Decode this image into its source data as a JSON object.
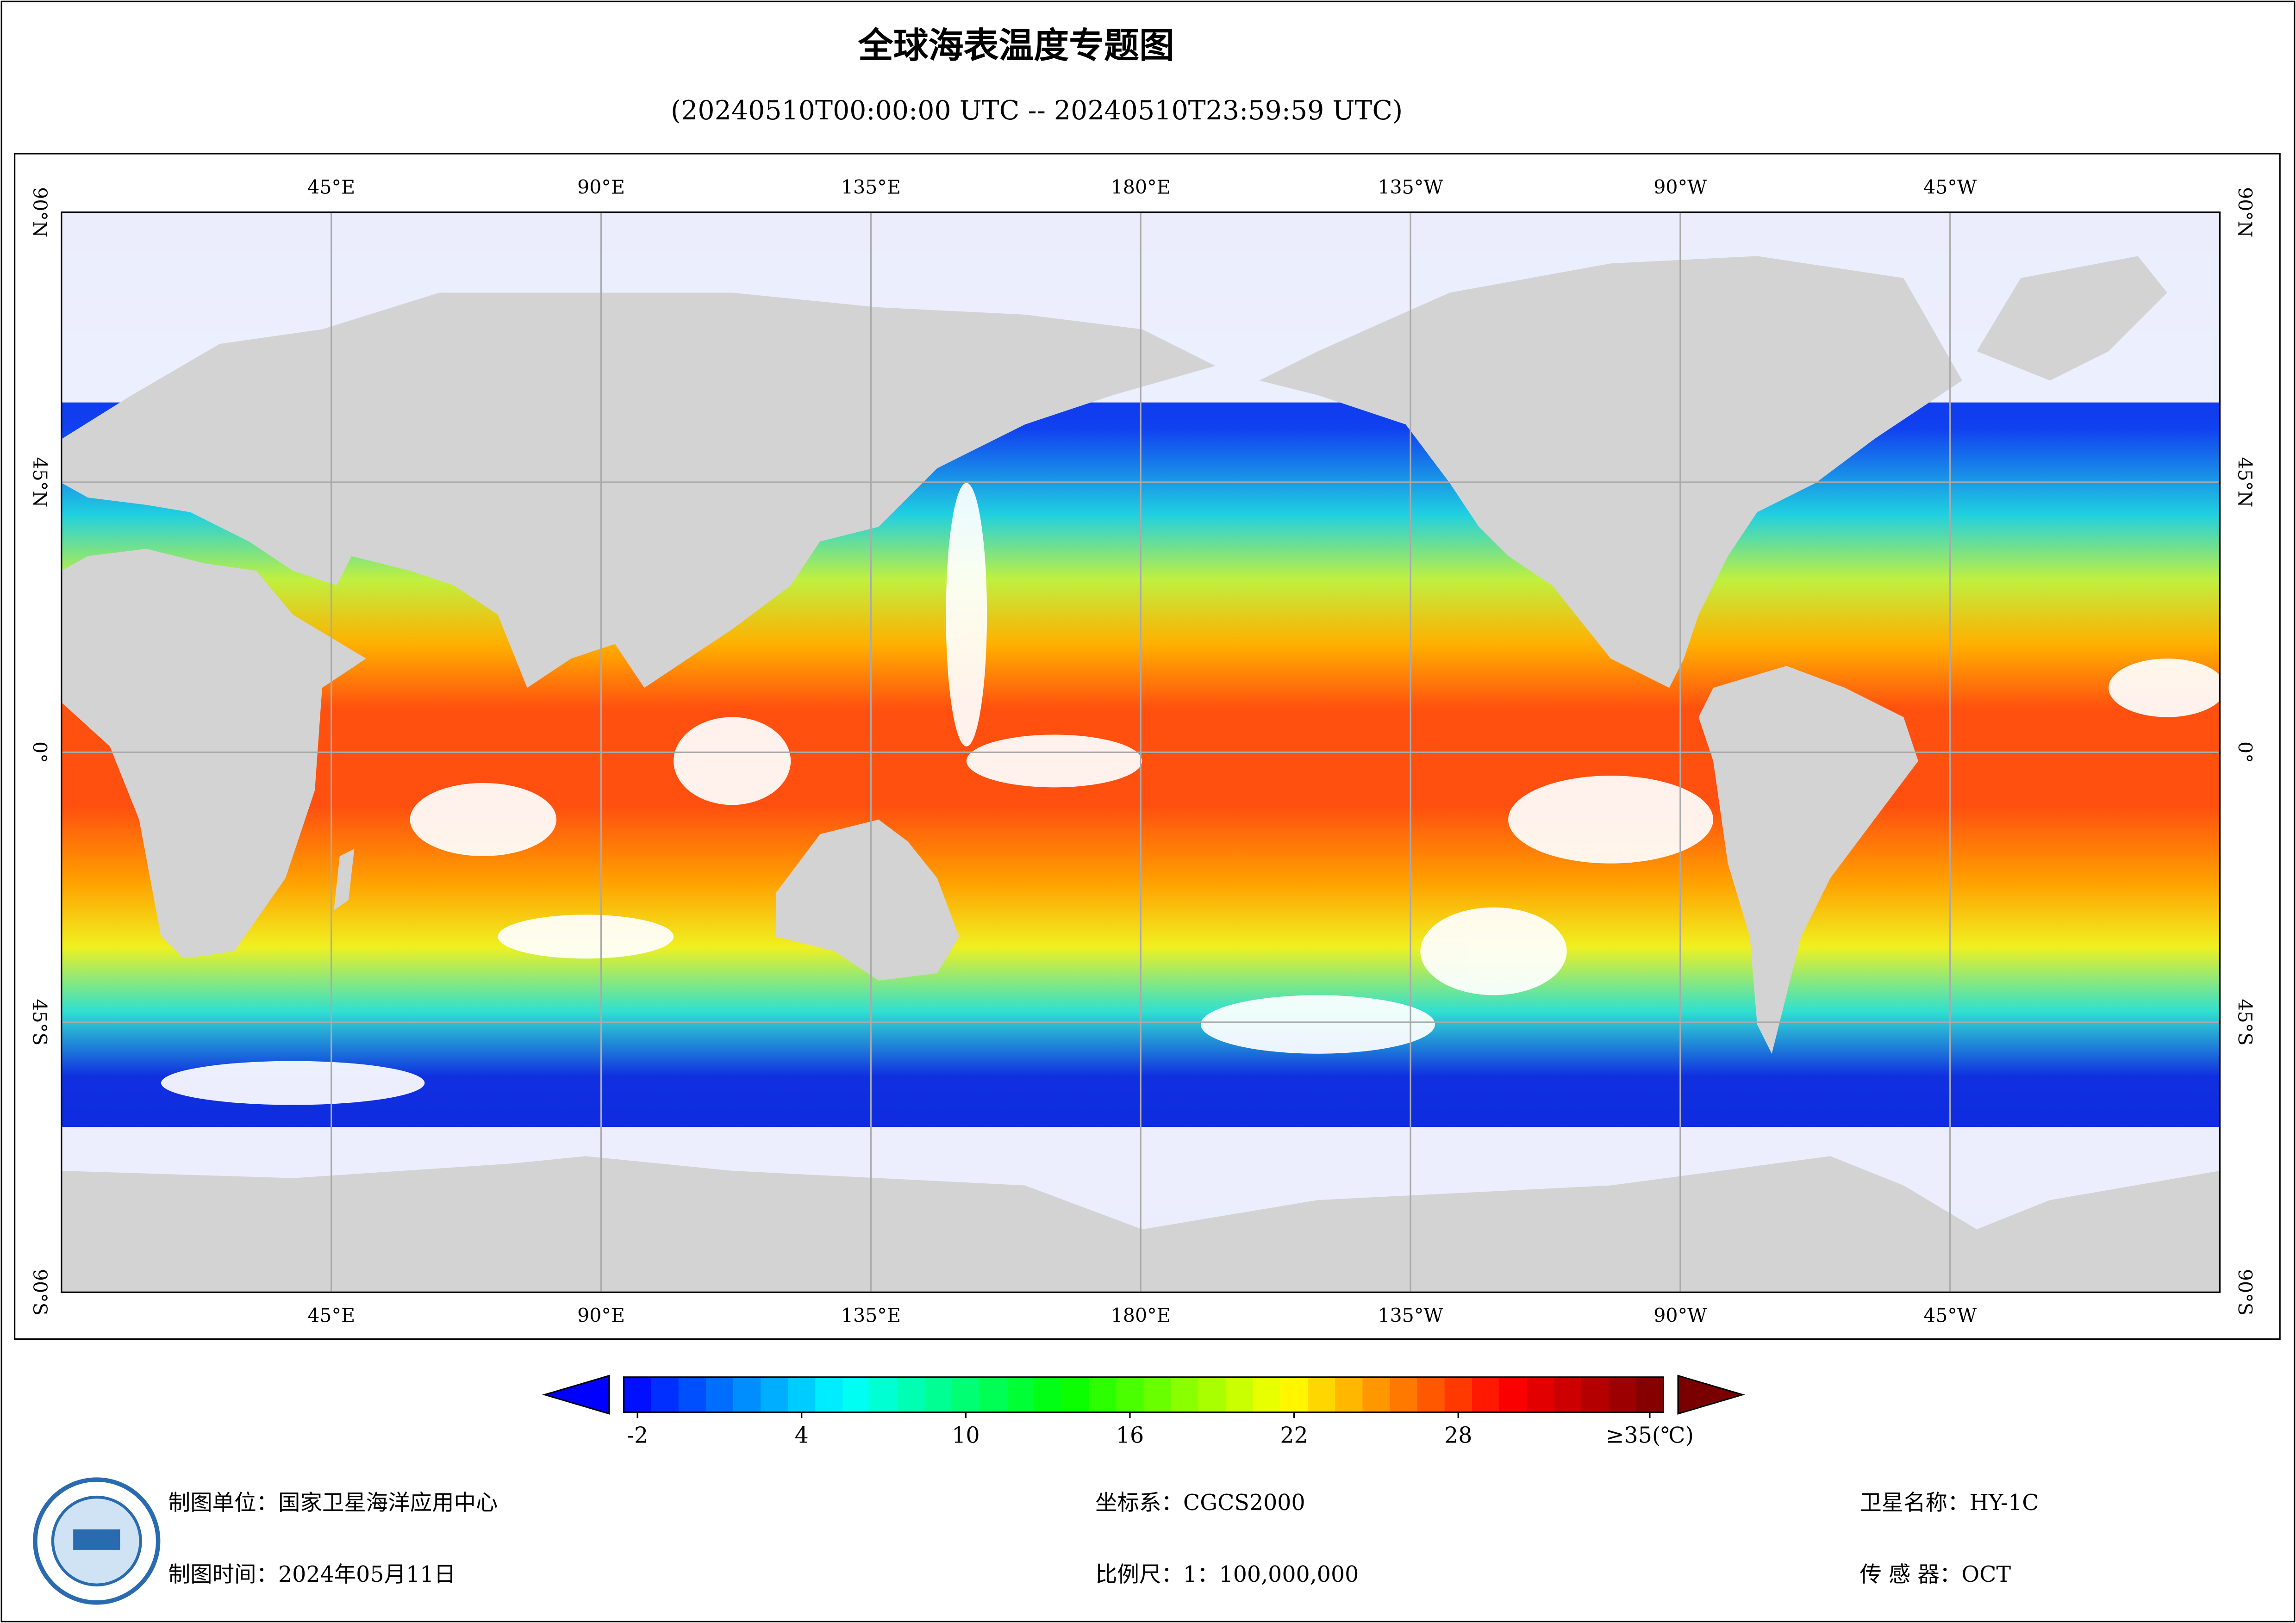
{
  "header": {
    "title": "全球海表温度专题图",
    "subtitle": "(20240510T00:00:00 UTC -- 20240510T23:59:59 UTC)"
  },
  "map": {
    "xlim": [
      0,
      360
    ],
    "ylim": [
      -90,
      90
    ],
    "lon_ticks": [
      {
        "value": 45,
        "label": "45°E"
      },
      {
        "value": 90,
        "label": "90°E"
      },
      {
        "value": 135,
        "label": "135°E"
      },
      {
        "value": 180,
        "label": "180°E"
      },
      {
        "value": 225,
        "label": "135°W"
      },
      {
        "value": 270,
        "label": "90°W"
      },
      {
        "value": 315,
        "label": "45°W"
      }
    ],
    "lat_ticks": [
      {
        "value": 90,
        "label": "90°N"
      },
      {
        "value": 45,
        "label": "45°N"
      },
      {
        "value": 0,
        "label": "0°"
      },
      {
        "value": -45,
        "label": "45°S"
      },
      {
        "value": -90,
        "label": "90°S"
      }
    ]
  },
  "colorbar": {
    "lim": [
      -2.5,
      35.5
    ],
    "ticks": [
      -2,
      4,
      10,
      16,
      22,
      28,
      {
        "value": 35,
        "label": "≥35(℃)"
      }
    ]
  },
  "footer": {
    "unit": "制图单位：国家卫星海洋应用中心",
    "date": "制图时间：2024年05月11日",
    "crs": "坐标系：CGCS2000",
    "scale": "比例尺：1：100,000,000",
    "satellite": "卫星名称：HY-1C",
    "sensor": "传 感 器：OCT"
  }
}
